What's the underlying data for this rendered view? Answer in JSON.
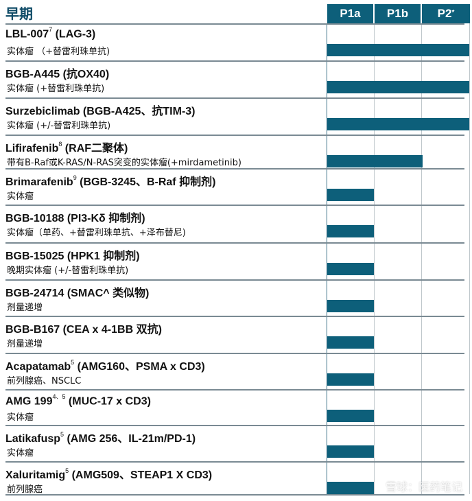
{
  "title": "早期",
  "phases": [
    "P1a",
    "P1b",
    "P2",
    "*"
  ],
  "watermark": "雪球：医药笔记",
  "accent_color": "#0d5f7a",
  "rows": [
    {
      "name": "LBL-007",
      "sup": "7",
      "name_rest": " (LAG-3)",
      "subtitle": "实体瘤 （+替雷利珠单抗)",
      "phase_progress": 1.0
    },
    {
      "name": "BGB-A445",
      "sup": "",
      "name_rest": " (抗OX40)",
      "subtitle": "实体瘤 (+替雷利珠单抗)",
      "phase_progress": 1.0
    },
    {
      "name": "Surzebiclimab",
      "sup": "",
      "name_rest": " (BGB-A425、抗TIM-3)",
      "subtitle": "实体瘤 (+/-替雷利珠单抗)",
      "phase_progress": 1.0
    },
    {
      "name": "Lifirafenib",
      "sup": "8",
      "name_rest": " (RAF二聚体)",
      "subtitle": "带有B-Raf或K-RAS/N-RAS突变的实体瘤(+mirdametinib)",
      "phase_progress": 0.67
    },
    {
      "name": "Brimarafenib",
      "sup": "9",
      "name_rest": " (BGB-3245、B-Raf 抑制剂)",
      "subtitle": "实体瘤",
      "phase_progress": 0.33
    },
    {
      "name": "BGB-10188",
      "sup": "",
      "name_rest": " (PI3-Kδ 抑制剂)",
      "subtitle": "实体瘤（单药、+替雷利珠单抗、+泽布替尼)",
      "phase_progress": 0.33
    },
    {
      "name": "BGB-15025",
      "sup": "",
      "name_rest": " (HPK1 抑制剂)",
      "subtitle": "晚期实体瘤 (+/-替雷利珠单抗)",
      "phase_progress": 0.33
    },
    {
      "name": "BGB-24714",
      "sup": "",
      "name_rest": " (SMAC^ 类似物)",
      "subtitle": "剂量递增",
      "phase_progress": 0.33
    },
    {
      "name": "BGB-B167",
      "sup": "",
      "name_rest": " (CEA x 4-1BB 双抗)",
      "subtitle": "剂量递增",
      "phase_progress": 0.33
    },
    {
      "name": "Acapatamab",
      "sup": "5",
      "name_rest": " (AMG160、PSMA x CD3)",
      "subtitle": "前列腺癌、NSCLC",
      "phase_progress": 0.33
    },
    {
      "name": "AMG 199",
      "sup": "4、5",
      "name_rest": " (MUC-17 x CD3)",
      "subtitle": "实体瘤",
      "phase_progress": 0.33
    },
    {
      "name": "Latikafusp",
      "sup": "5",
      "name_rest": " (AMG 256、IL-21m/PD-1)",
      "subtitle": "实体瘤",
      "phase_progress": 0.33
    },
    {
      "name": "Xaluritamig",
      "sup": "5",
      "name_rest": " (AMG509、STEAP1 X CD3)",
      "subtitle": "前列腺癌",
      "phase_progress": 0.33
    }
  ]
}
